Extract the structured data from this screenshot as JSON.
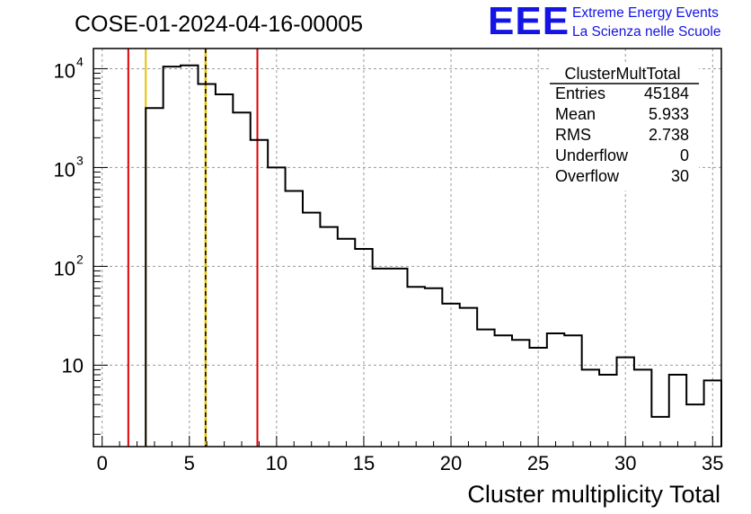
{
  "header": {
    "run_title": "COSE-01-2024-04-16-00005",
    "logo_text": "EEE",
    "logo_line1": "Extreme Energy Events",
    "logo_line2": "La Scienza nelle Scuole"
  },
  "stats_box": {
    "title": "ClusterMultTotal",
    "rows": [
      {
        "label": "Entries",
        "value": "45184"
      },
      {
        "label": "Mean",
        "value": "5.933"
      },
      {
        "label": "RMS",
        "value": "2.738"
      },
      {
        "label": "Underflow",
        "value": "0"
      },
      {
        "label": "Overflow",
        "value": "30"
      }
    ]
  },
  "colors": {
    "histogram": "#000000",
    "red_marker": "#e00000",
    "yellow_marker": "#e8c000",
    "grid": "#9a9a9a",
    "logo": "#1414e6"
  },
  "chart_data": {
    "type": "bar",
    "title": "COSE-01-2024-04-16-00005",
    "xlabel": "Cluster multiplicity Total",
    "ylabel": "",
    "xlim": [
      -0.5,
      35.5
    ],
    "ylim": [
      1.5,
      16000
    ],
    "log_y": true,
    "grid": true,
    "bin_width": 1,
    "bin_edges_start": -0.5,
    "values": [
      0,
      0,
      0,
      4000,
      10500,
      10800,
      7000,
      5500,
      3600,
      1900,
      1000,
      580,
      350,
      250,
      190,
      150,
      95,
      95,
      62,
      60,
      42,
      38,
      23,
      20,
      18,
      15,
      21,
      20,
      9,
      8,
      12,
      9,
      3,
      8,
      4,
      7
    ],
    "x_ticks": [
      0,
      5,
      10,
      15,
      20,
      25,
      30,
      35
    ],
    "x_tick_labels": [
      "0",
      "5",
      "10",
      "15",
      "20",
      "25",
      "30",
      "35"
    ],
    "y_ticks": [
      10,
      100,
      1000,
      10000
    ],
    "y_tick_labels": [
      {
        "base": "10",
        "exp": ""
      },
      {
        "base": "10",
        "exp": "2"
      },
      {
        "base": "10",
        "exp": "3"
      },
      {
        "base": "10",
        "exp": "4"
      }
    ],
    "markers": [
      {
        "x": 1.5,
        "color": "red",
        "style": "solid"
      },
      {
        "x": 2.5,
        "color": "yellow",
        "style": "solid"
      },
      {
        "x": 5.933,
        "color": "yellow",
        "style": "dashed-over-solid"
      },
      {
        "x": 8.9,
        "color": "red",
        "style": "solid"
      }
    ]
  }
}
